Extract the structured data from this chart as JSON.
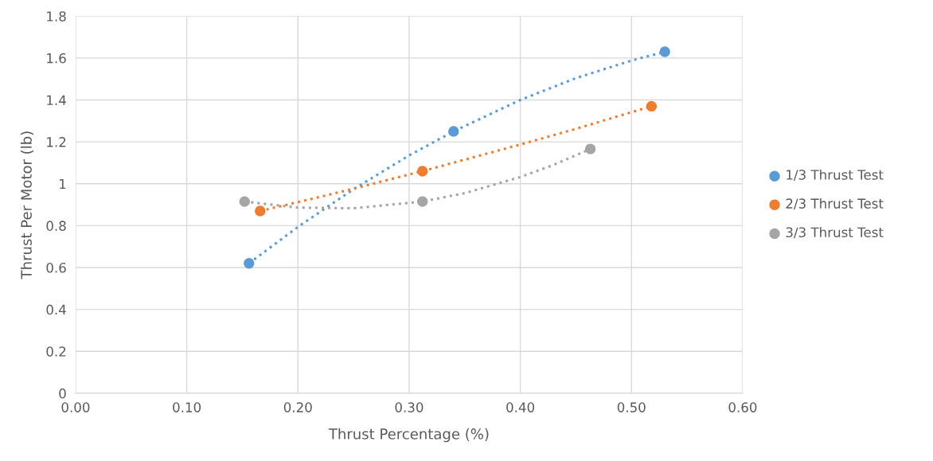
{
  "chart_data": {
    "type": "scatter",
    "xlabel": "Thrust Percentage (%)",
    "ylabel": "Thrust Per Motor (lb)",
    "xlim": [
      0,
      0.6
    ],
    "xticks": [
      {
        "value": 0,
        "label": "0.00"
      },
      {
        "value": 0.1,
        "label": "0.10"
      },
      {
        "value": 0.2,
        "label": "0.20"
      },
      {
        "value": 0.3,
        "label": "0.30"
      },
      {
        "value": 0.4,
        "label": "0.40"
      },
      {
        "value": 0.5,
        "label": "0.50"
      },
      {
        "value": 0.6,
        "label": "0.60"
      }
    ],
    "ylim": [
      0,
      1.8
    ],
    "yticks": [
      0,
      0.2,
      0.4,
      0.6,
      0.8,
      1,
      1.2,
      1.4,
      1.6,
      1.8
    ],
    "grid": true,
    "legend": "right",
    "marker": "circle",
    "series": [
      {
        "type": "line",
        "line_style": "dotted",
        "marker": "none",
        "color": "#5b9bd5",
        "x": [
          0.156,
          0.2,
          0.25,
          0.3,
          0.34,
          0.4,
          0.45,
          0.5,
          0.53
        ],
        "values": [
          0.62,
          0.794,
          0.974,
          1.135,
          1.25,
          1.4,
          1.504,
          1.588,
          1.63
        ]
      },
      {
        "type": "line",
        "line_style": "dotted",
        "marker": "none",
        "color": "#ed7d31",
        "x": [
          0.166,
          0.2,
          0.25,
          0.312,
          0.4,
          0.45,
          0.518
        ],
        "values": [
          0.87,
          0.912,
          0.976,
          1.06,
          1.187,
          1.262,
          1.37
        ]
      },
      {
        "type": "line",
        "line_style": "dotted",
        "marker": "none",
        "color": "#a5a5a5",
        "x": [
          0.152,
          0.2,
          0.25,
          0.312,
          0.35,
          0.4,
          0.43,
          0.463
        ],
        "values": [
          0.915,
          0.886,
          0.883,
          0.915,
          0.955,
          1.032,
          1.09,
          1.166
        ]
      },
      {
        "name": "1/3 Thrust Test",
        "color": "#5b9bd5",
        "x": [
          0.156,
          0.34,
          0.53
        ],
        "values": [
          0.62,
          1.25,
          1.63
        ]
      },
      {
        "name": "2/3 Thrust Test",
        "color": "#ed7d31",
        "x": [
          0.166,
          0.312,
          0.518
        ],
        "values": [
          0.87,
          1.06,
          1.37
        ]
      },
      {
        "name": "3/3 Thrust Test",
        "color": "#a5a5a5",
        "x": [
          0.152,
          0.312,
          0.463
        ],
        "values": [
          0.915,
          0.915,
          1.166
        ]
      }
    ]
  }
}
